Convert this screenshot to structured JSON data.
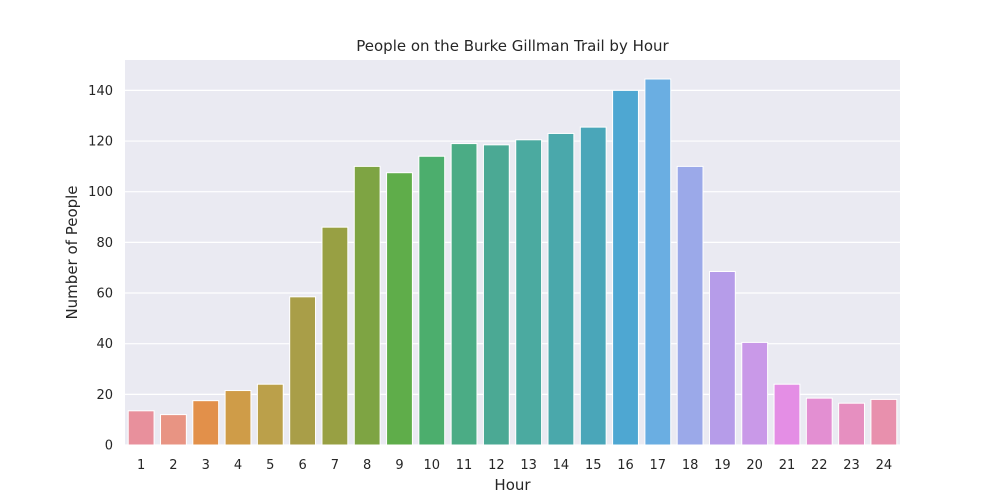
{
  "chart_data": {
    "type": "bar",
    "title": "People on the Burke Gillman Trail by Hour",
    "xlabel": "Hour",
    "ylabel": "Number of People",
    "categories": [
      "1",
      "2",
      "3",
      "4",
      "5",
      "6",
      "7",
      "8",
      "9",
      "10",
      "11",
      "12",
      "13",
      "14",
      "15",
      "16",
      "17",
      "18",
      "19",
      "20",
      "21",
      "22",
      "23",
      "24"
    ],
    "values": [
      13.5,
      12,
      17.5,
      21.5,
      24,
      58.5,
      86,
      110,
      107.5,
      114,
      119,
      118.5,
      120.5,
      123,
      125.5,
      140,
      144.5,
      110,
      68.5,
      40.5,
      24,
      18.5,
      16.5,
      18
    ],
    "ylim": [
      0,
      152
    ],
    "yticks": [
      0,
      20,
      40,
      60,
      80,
      100,
      120,
      140
    ],
    "colors": [
      "#e8909c",
      "#e89483",
      "#e2904a",
      "#cf9c48",
      "#bba04a",
      "#a99e48",
      "#98a043",
      "#7ea443",
      "#5fad4a",
      "#4cae6d",
      "#4bac85",
      "#4ba994",
      "#4baaa0",
      "#4aa8ab",
      "#4aa6b9",
      "#4ea7d2",
      "#6aaee2",
      "#9ba9e9",
      "#b69ce9",
      "#c999e8",
      "#e48ee5",
      "#e38fd2",
      "#e68fc0",
      "#e890ad"
    ],
    "background": "#eaeaf2",
    "grid": "y"
  }
}
